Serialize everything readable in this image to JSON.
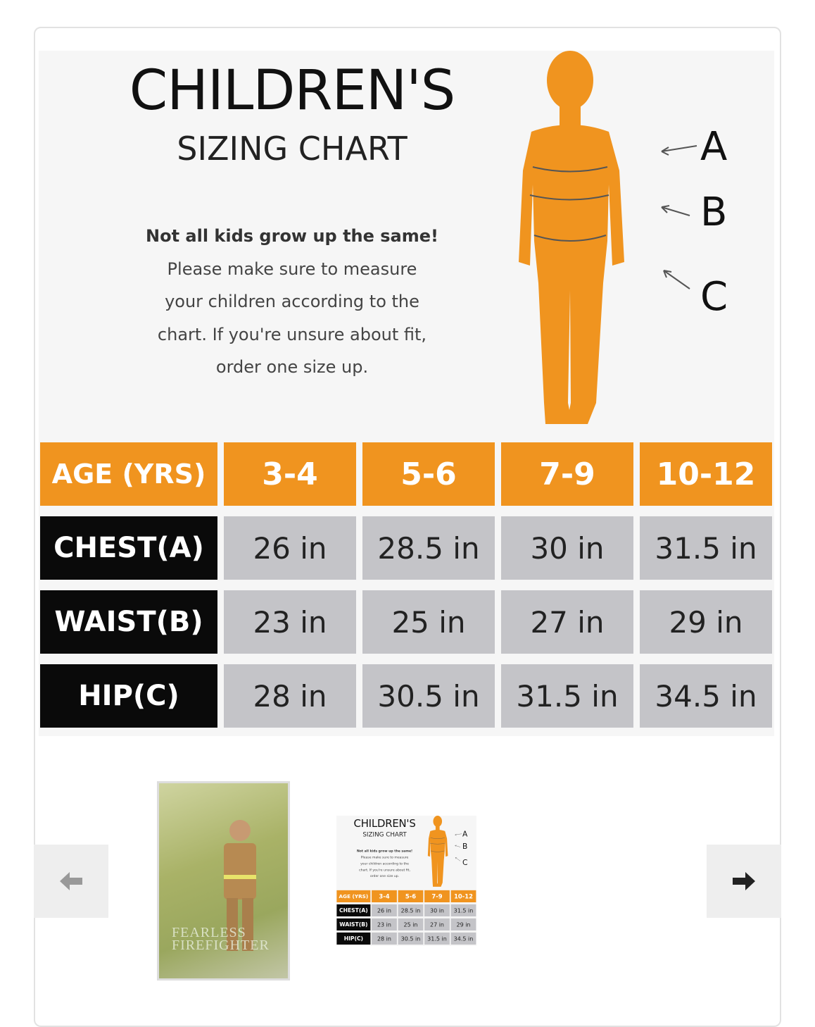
{
  "chart": {
    "title": "CHILDREN'S",
    "subtitle": "SIZING CHART",
    "note": [
      "Not all kids grow up the same!",
      "Please make sure to measure",
      "your children according to the",
      "chart. If you're unsure about fit,",
      "order one size up."
    ],
    "markers": [
      "A",
      "B",
      "C"
    ],
    "header": [
      "AGE (YRS)",
      "3-4",
      "5-6",
      "7-9",
      "10-12"
    ],
    "rows": [
      [
        "CHEST(A)",
        "26 in",
        "28.5 in",
        "30 in",
        "31.5 in"
      ],
      [
        "WAIST(B)",
        "23 in",
        "25 in",
        "27 in",
        "29 in"
      ],
      [
        "HIP(C)",
        "28 in",
        "30.5 in",
        "31.5 in",
        "34.5 in"
      ]
    ],
    "colors": {
      "orange": "#f0941f",
      "black": "#0a0a0a",
      "gray": "#c4c4c8"
    }
  },
  "thumbnails": [
    {
      "label": "FEARLESS",
      "label2": "FIREFIGHTER"
    }
  ],
  "nav": {
    "prev_icon": "arrow-left-icon",
    "next_icon": "arrow-right-icon"
  }
}
